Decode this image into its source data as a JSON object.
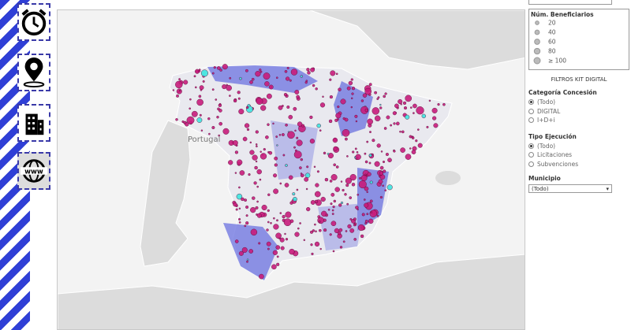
{
  "map": {
    "country_label": "Portugal"
  },
  "size_legend": {
    "title": "Núm. Beneficiarios",
    "items": [
      20,
      40,
      60,
      80,
      {
        "value": 100,
        "label": "≥ 100"
      }
    ]
  },
  "filters": {
    "title": "FILTROS KIT DIGITAL",
    "categoria": {
      "label": "Categoría Concesión",
      "options": [
        "(Todo)",
        "DIGITAL",
        "I+D+i"
      ]
    },
    "tipo": {
      "label": "Tipo Ejecución",
      "options": [
        "(Todo)",
        "Licitaciones",
        "Subvenciones"
      ]
    },
    "municipio": {
      "label": "Municipio",
      "value": "(Todo)"
    }
  }
}
